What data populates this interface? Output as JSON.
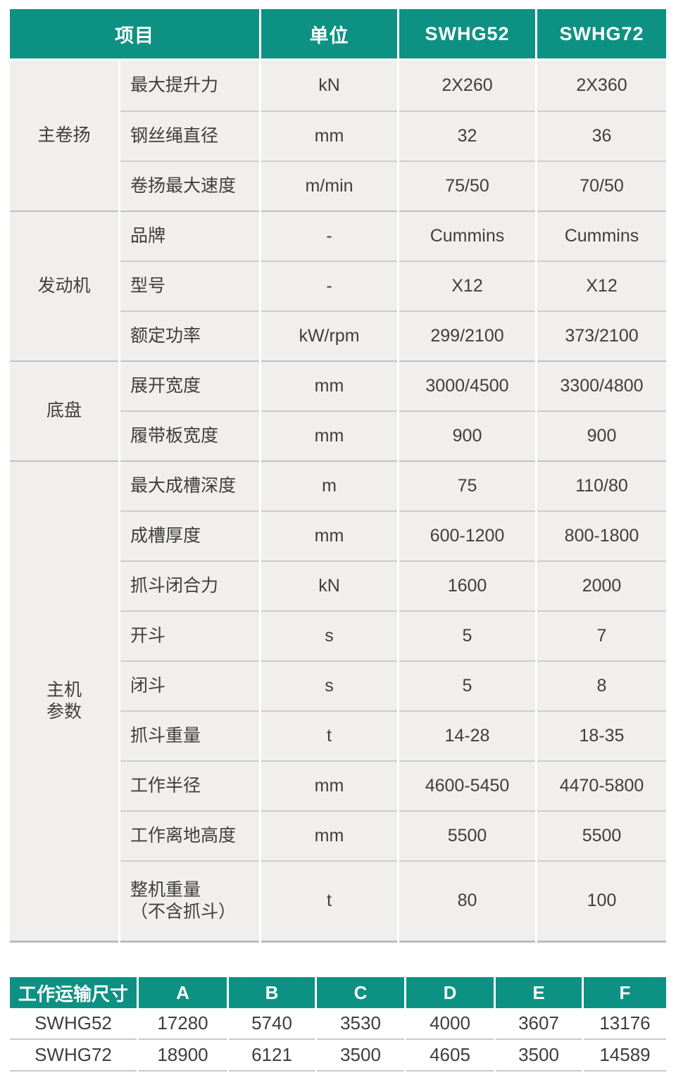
{
  "theme": {
    "teal": "#0d9183",
    "row_bg": "#f0efed",
    "line": "#c6c8ca",
    "text": "#3e3e3e"
  },
  "spec_table": {
    "headers": {
      "item": "项目",
      "unit": "单位",
      "model1": "SWHG52",
      "model2": "SWHG72"
    },
    "groups": [
      {
        "category": "主卷扬",
        "rows": [
          {
            "param": "最大提升力",
            "unit": "kN",
            "v1": "2X260",
            "v2": "2X360"
          },
          {
            "param": "钢丝绳直径",
            "unit": "mm",
            "v1": "32",
            "v2": "36"
          },
          {
            "param": "卷扬最大速度",
            "unit": "m/min",
            "v1": "75/50",
            "v2": "70/50"
          }
        ]
      },
      {
        "category": "发动机",
        "rows": [
          {
            "param": "品牌",
            "unit": "-",
            "v1": "Cummins",
            "v2": "Cummins"
          },
          {
            "param": "型号",
            "unit": "-",
            "v1": "X12",
            "v2": "X12"
          },
          {
            "param": "额定功率",
            "unit": "kW/rpm",
            "v1": "299/2100",
            "v2": "373/2100"
          }
        ]
      },
      {
        "category": "底盘",
        "rows": [
          {
            "param": "展开宽度",
            "unit": "mm",
            "v1": "3000/4500",
            "v2": "3300/4800"
          },
          {
            "param": "履带板宽度",
            "unit": "mm",
            "v1": "900",
            "v2": "900"
          }
        ]
      },
      {
        "category": "主机\n参数",
        "rows": [
          {
            "param": "最大成槽深度",
            "unit": "m",
            "v1": "75",
            "v2": "110/80"
          },
          {
            "param": "成槽厚度",
            "unit": "mm",
            "v1": "600-1200",
            "v2": "800-1800"
          },
          {
            "param": "抓斗闭合力",
            "unit": "kN",
            "v1": "1600",
            "v2": "2000"
          },
          {
            "param": "开斗",
            "unit": "s",
            "v1": "5",
            "v2": "7"
          },
          {
            "param": "闭斗",
            "unit": "s",
            "v1": "5",
            "v2": "8"
          },
          {
            "param": "抓斗重量",
            "unit": "t",
            "v1": "14-28",
            "v2": "18-35"
          },
          {
            "param": "工作半径",
            "unit": "mm",
            "v1": "4600-5450",
            "v2": "4470-5800"
          },
          {
            "param": "工作离地高度",
            "unit": "mm",
            "v1": "5500",
            "v2": "5500"
          },
          {
            "param": "整机重量\n（不含抓斗）",
            "unit": "t",
            "v1": "80",
            "v2": "100"
          }
        ]
      }
    ]
  },
  "transport_table": {
    "title": "工作运输尺寸",
    "columns": [
      "A",
      "B",
      "C",
      "D",
      "E",
      "F"
    ],
    "rows": [
      {
        "model": "SWHG52",
        "values": [
          "17280",
          "5740",
          "3530",
          "4000",
          "3607",
          "13176"
        ]
      },
      {
        "model": "SWHG72",
        "values": [
          "18900",
          "6121",
          "3500",
          "4605",
          "3500",
          "14589"
        ]
      }
    ]
  }
}
